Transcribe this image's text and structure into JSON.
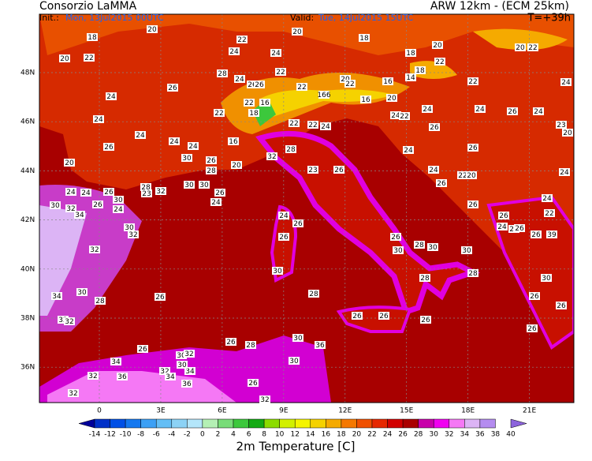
{
  "header": {
    "title": "Consorzio LaMMA",
    "model": "ARW 12km - (ECM 25km)",
    "init_label": "Init.:",
    "init_time": "Mon, 13Jul2015 00UTC",
    "valid_label": "Valid:",
    "valid_time": "Tue, 14Jul2015 15UTC",
    "lead": "T=+39h"
  },
  "map": {
    "lon_ticks": [
      0,
      {
        "value": 3,
        "label": "3E"
      },
      {
        "value": 6,
        "label": "6E"
      },
      {
        "value": 9,
        "label": "9E"
      },
      {
        "value": 12,
        "label": "12E"
      },
      {
        "value": 15,
        "label": "15E"
      },
      {
        "value": 18,
        "label": "18E"
      },
      {
        "value": 21,
        "label": "21E"
      }
    ],
    "lat_ticks": [
      {
        "value": 48,
        "label": "48N"
      },
      {
        "value": 46,
        "label": "46N"
      },
      {
        "value": 44,
        "label": "44N"
      },
      {
        "value": 42,
        "label": "42N"
      },
      {
        "value": 40,
        "label": "40N"
      },
      {
        "value": 38,
        "label": "38N"
      },
      {
        "value": 36,
        "label": "36N"
      }
    ],
    "stations": [
      18,
      20,
      22,
      20,
      18,
      20,
      20,
      22,
      20,
      22,
      24,
      24,
      18,
      22,
      28,
      22,
      18,
      14,
      16,
      22,
      24,
      26,
      24,
      26,
      26,
      22,
      20,
      22,
      24,
      166,
      16,
      20,
      24,
      24,
      26,
      24,
      22,
      16,
      18,
      22,
      22,
      24,
      24,
      22,
      24,
      24,
      22,
      26,
      23,
      20,
      26,
      24,
      16,
      28,
      24,
      26,
      20,
      30,
      26,
      28,
      20,
      32,
      23,
      26,
      24,
      24,
      22,
      20,
      24,
      24,
      24,
      26,
      30,
      28,
      23,
      32,
      30,
      30,
      26,
      24,
      26,
      30,
      32,
      34,
      26,
      24,
      26,
      24,
      22,
      26,
      24,
      24,
      26,
      26,
      39,
      30,
      32,
      24,
      26,
      26,
      26,
      30,
      28,
      30,
      30,
      32,
      30,
      28,
      28,
      30,
      26,
      28,
      34,
      30,
      28,
      32,
      32,
      26,
      26,
      26,
      26,
      26,
      26,
      26,
      26,
      28,
      30,
      36,
      34,
      30,
      32,
      32,
      36,
      32,
      34,
      34,
      30,
      30,
      36,
      26,
      32,
      32
    ]
  },
  "colorbar": {
    "title": "2m Temperature [C]",
    "labels": [
      -14,
      -12,
      -10,
      -8,
      -6,
      -4,
      -2,
      0,
      2,
      4,
      6,
      8,
      10,
      12,
      14,
      16,
      18,
      20,
      22,
      24,
      26,
      28,
      30,
      32,
      34,
      36,
      38,
      40
    ],
    "colors": [
      "#00009a",
      "#0030c8",
      "#0050e6",
      "#1478f0",
      "#3ca0f5",
      "#64bef5",
      "#8cd2f5",
      "#b4e6fa",
      "#b4f0b4",
      "#78dc78",
      "#3cc83c",
      "#14aa14",
      "#8cdc00",
      "#d2f000",
      "#f5f500",
      "#f5d200",
      "#f5aa00",
      "#f57800",
      "#f05000",
      "#e62800",
      "#d20000",
      "#aa0000",
      "#c800aa",
      "#f000f0",
      "#f578f5",
      "#dcb4f5",
      "#b48cf0",
      "#8c64dc"
    ]
  }
}
